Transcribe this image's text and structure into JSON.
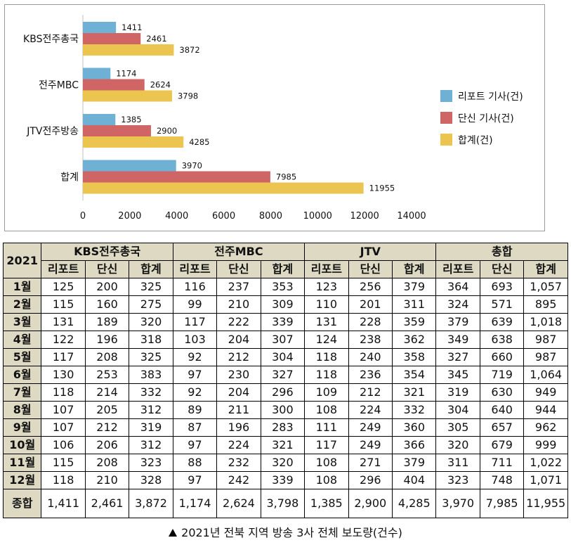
{
  "chart_data": {
    "type": "bar",
    "orientation": "horizontal",
    "categories": [
      "KBS전주총국",
      "전주MBC",
      "JTV전주방송",
      "합계"
    ],
    "series": [
      {
        "name": "리포트 기사(건)",
        "color": "#6fb0d5",
        "values": [
          1411,
          1174,
          1385,
          3970
        ]
      },
      {
        "name": "단신 기사(건)",
        "color": "#d06565",
        "values": [
          2461,
          2624,
          2900,
          7985
        ]
      },
      {
        "name": "합계(건)",
        "color": "#ecc550",
        "values": [
          3872,
          3798,
          4285,
          11955
        ]
      }
    ],
    "xlim": [
      0,
      14000
    ],
    "xticks": [
      "0",
      "2000",
      "4000",
      "6000",
      "8000",
      "10000",
      "12000",
      "14000"
    ],
    "legend": "right",
    "grid": false
  },
  "table": {
    "corner": "2021",
    "groups": [
      "KBS전주총국",
      "전주MBC",
      "JTV",
      "총합"
    ],
    "subheaders": [
      "리포트",
      "단신",
      "합계"
    ],
    "rows": [
      {
        "month": "1월",
        "values": [
          "125",
          "200",
          "325",
          "116",
          "237",
          "353",
          "123",
          "256",
          "379",
          "364",
          "693",
          "1,057"
        ]
      },
      {
        "month": "2월",
        "values": [
          "115",
          "160",
          "275",
          "99",
          "210",
          "309",
          "110",
          "201",
          "311",
          "324",
          "571",
          "895"
        ]
      },
      {
        "month": "3월",
        "values": [
          "131",
          "189",
          "320",
          "117",
          "222",
          "339",
          "131",
          "228",
          "359",
          "379",
          "639",
          "1,018"
        ]
      },
      {
        "month": "4월",
        "values": [
          "122",
          "196",
          "318",
          "103",
          "204",
          "307",
          "124",
          "238",
          "362",
          "349",
          "638",
          "987"
        ]
      },
      {
        "month": "5월",
        "values": [
          "117",
          "208",
          "325",
          "92",
          "212",
          "304",
          "118",
          "240",
          "358",
          "327",
          "660",
          "987"
        ]
      },
      {
        "month": "6월",
        "values": [
          "130",
          "253",
          "383",
          "97",
          "230",
          "327",
          "118",
          "236",
          "354",
          "345",
          "719",
          "1,064"
        ]
      },
      {
        "month": "7월",
        "values": [
          "118",
          "214",
          "332",
          "92",
          "204",
          "296",
          "109",
          "212",
          "321",
          "319",
          "630",
          "949"
        ]
      },
      {
        "month": "8월",
        "values": [
          "107",
          "205",
          "312",
          "89",
          "211",
          "300",
          "108",
          "224",
          "332",
          "304",
          "640",
          "944"
        ]
      },
      {
        "month": "9월",
        "values": [
          "107",
          "212",
          "319",
          "87",
          "196",
          "283",
          "111",
          "249",
          "360",
          "305",
          "657",
          "962"
        ]
      },
      {
        "month": "10월",
        "values": [
          "106",
          "206",
          "312",
          "97",
          "224",
          "321",
          "117",
          "249",
          "366",
          "320",
          "679",
          "999"
        ]
      },
      {
        "month": "11월",
        "values": [
          "115",
          "208",
          "323",
          "88",
          "232",
          "320",
          "108",
          "271",
          "379",
          "311",
          "711",
          "1,022"
        ]
      },
      {
        "month": "12월",
        "values": [
          "118",
          "210",
          "328",
          "97",
          "242",
          "339",
          "108",
          "296",
          "404",
          "323",
          "748",
          "1,071"
        ]
      },
      {
        "month": "종합",
        "values": [
          "1,411",
          "2,461",
          "3,872",
          "1,174",
          "2,624",
          "3,798",
          "1,385",
          "2,900",
          "4,285",
          "3,970",
          "7,985",
          "11,955"
        ]
      }
    ]
  },
  "caption": "2021년 전북 지역 방송 3사 전체 보도량(건수)"
}
